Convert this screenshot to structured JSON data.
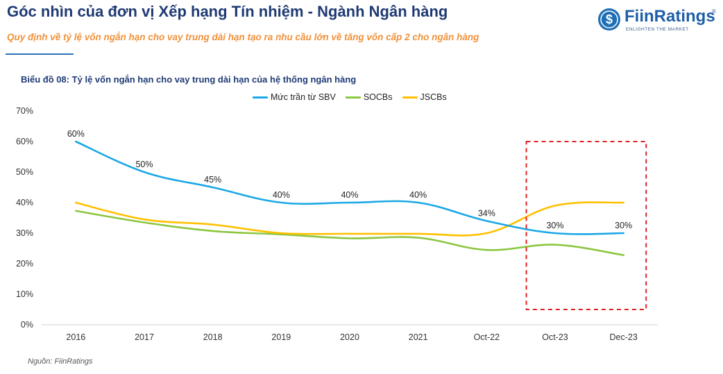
{
  "header": {
    "title": "Góc nhìn của đơn vị Xếp hạng Tín nhiệm - Ngành Ngân hàng",
    "subtitle": "Quy định về tỷ lệ vốn ngắn hạn cho vay trung dài hạn tạo ra nhu cầu lớn về tăng vốn cấp 2 cho ngân hàng"
  },
  "logo": {
    "name": "FiinRatings",
    "registered_mark": "®",
    "tagline": "ENLIGHTEN THE MARKET",
    "mark_glyph": "$"
  },
  "colors": {
    "title": "#1f3a73",
    "subtitle": "#f0913a",
    "series_sbv": "#1aa7e6",
    "series_socbs": "#8cc63f",
    "series_jscbs": "#ffc000",
    "highlight_box": "#e02020"
  },
  "chart_data": {
    "type": "line",
    "title": "Biểu đồ 08: Tỷ lệ vốn ngắn hạn cho vay trung dài hạn của hệ thống ngân hàng",
    "xlabel": "",
    "ylabel": "",
    "ylim": [
      0,
      70
    ],
    "yticks": [
      0,
      10,
      20,
      30,
      40,
      50,
      60,
      70
    ],
    "ytick_labels": [
      "0%",
      "10%",
      "20%",
      "30%",
      "40%",
      "50%",
      "60%",
      "70%"
    ],
    "categories": [
      "2016",
      "2017",
      "2018",
      "2019",
      "2020",
      "2021",
      "Oct-22",
      "Oct-23",
      "Dec-23"
    ],
    "series": [
      {
        "name": "Mức trần từ SBV",
        "values": [
          60,
          50,
          45,
          40,
          40,
          40,
          34,
          30,
          30
        ],
        "data_labels": [
          "60%",
          "50%",
          "45%",
          "40%",
          "40%",
          "40%",
          "34%",
          "30%",
          "30%"
        ]
      },
      {
        "name": "SOCBs",
        "values": [
          37.3,
          33.5,
          30.7,
          29.6,
          28.3,
          28.5,
          24.5,
          26.2,
          22.8
        ]
      },
      {
        "name": "JSCBs",
        "values": [
          40,
          34.5,
          32.8,
          30,
          29.8,
          29.8,
          30,
          39,
          40
        ]
      }
    ],
    "legend_position": "top",
    "highlight": {
      "from_category": "Oct-23",
      "to_category": "Dec-23",
      "y_range": [
        5,
        60
      ]
    }
  },
  "source": "Nguồn: FiinRatings"
}
